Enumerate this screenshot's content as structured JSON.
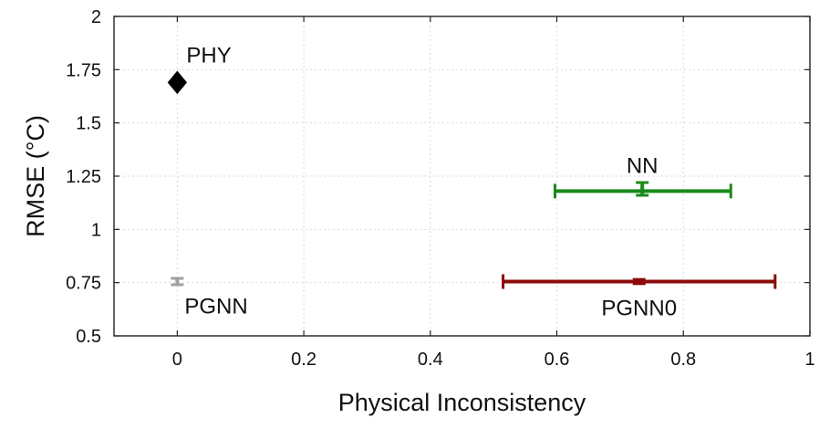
{
  "chart_data": {
    "type": "scatter",
    "title": "",
    "xlabel": "Physical Inconsistency",
    "ylabel": "RMSE (°C)",
    "xlim": [
      -0.1,
      1.0
    ],
    "ylim": [
      0.5,
      2.0
    ],
    "grid": true,
    "xticks": [
      0,
      0.2,
      0.4,
      0.6,
      0.8,
      1
    ],
    "xtick_labels": [
      "0",
      "0.2",
      "0.4",
      "0.6",
      "0.8",
      "1"
    ],
    "yticks": [
      0.5,
      0.75,
      1.0,
      1.25,
      1.5,
      1.75,
      2.0
    ],
    "ytick_labels": [
      "0.5",
      "0.75",
      "1",
      "1.25",
      "1.5",
      "1.75",
      "2"
    ],
    "points": [
      {
        "label": "PHY",
        "x": 0.0,
        "y": 1.69,
        "xerr": [
          0.0,
          0.0
        ],
        "yerr": [
          0.0,
          0.0
        ],
        "marker": "diamond",
        "color": "#000000",
        "label_pos": "upper-right"
      },
      {
        "label": "NN",
        "x": 0.735,
        "y": 1.18,
        "xerr": [
          0.597,
          0.875
        ],
        "yerr": [
          1.16,
          1.22
        ],
        "marker": "bar",
        "color": "#1a8a1a",
        "label_pos": "above"
      },
      {
        "label": "PGNN",
        "x": 0.0,
        "y": 0.755,
        "xerr": [
          0.0,
          0.0
        ],
        "yerr": [
          0.74,
          0.77
        ],
        "marker": "bar",
        "color": "#a0a0a0",
        "label_pos": "lower-right"
      },
      {
        "label": "PGNN0",
        "x": 0.73,
        "y": 0.755,
        "xerr": [
          0.515,
          0.945
        ],
        "yerr": [
          0.745,
          0.765
        ],
        "marker": "bar",
        "color": "#8b0a0a",
        "label_pos": "below"
      }
    ]
  }
}
